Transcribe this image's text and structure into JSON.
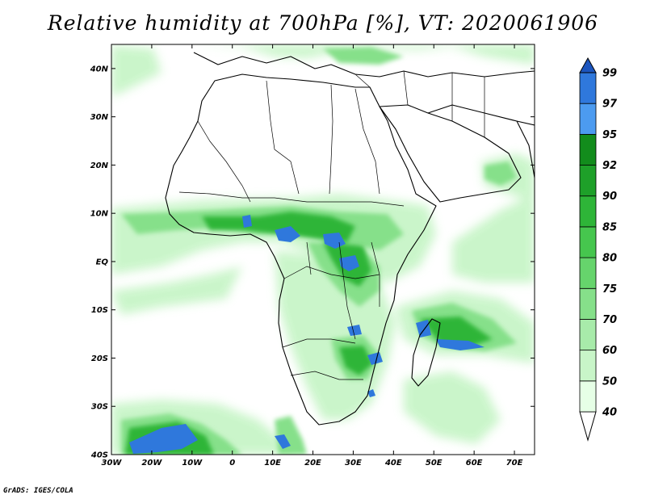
{
  "title": "Relative humidity at 700hPa [%], VT: 2020061906",
  "credit": "GrADS: IGES/COLA",
  "map": {
    "lon_range": [
      -30,
      75
    ],
    "lat_range": [
      -40,
      45
    ],
    "lat_ticks": [
      {
        "value": 40,
        "label": "40N"
      },
      {
        "value": 30,
        "label": "30N"
      },
      {
        "value": 20,
        "label": "20N"
      },
      {
        "value": 10,
        "label": "10N"
      },
      {
        "value": 0,
        "label": "EQ"
      },
      {
        "value": -10,
        "label": "10S"
      },
      {
        "value": -20,
        "label": "20S"
      },
      {
        "value": -30,
        "label": "30S"
      },
      {
        "value": -40,
        "label": "40S"
      }
    ],
    "lon_ticks": [
      {
        "value": -30,
        "label": "30W"
      },
      {
        "value": -20,
        "label": "20W"
      },
      {
        "value": -10,
        "label": "10W"
      },
      {
        "value": 0,
        "label": "0"
      },
      {
        "value": 10,
        "label": "10E"
      },
      {
        "value": 20,
        "label": "20E"
      },
      {
        "value": 30,
        "label": "30E"
      },
      {
        "value": 40,
        "label": "40E"
      },
      {
        "value": 50,
        "label": "50E"
      },
      {
        "value": 60,
        "label": "60E"
      },
      {
        "value": 70,
        "label": "70E"
      }
    ]
  },
  "colorbar": {
    "levels": [
      "40",
      "50",
      "60",
      "70",
      "75",
      "80",
      "85",
      "90",
      "92",
      "95",
      "97",
      "99"
    ],
    "colors": [
      "#e6ffe6",
      "#c8f5c8",
      "#a8ebaa",
      "#86e08a",
      "#66d46c",
      "#46c64e",
      "#2eb538",
      "#1ea029",
      "#128c1c",
      "#4c9bf0",
      "#2f78dc",
      "#1c55be"
    ]
  },
  "palette": {
    "coast": "#000000",
    "humid_blue": "#2f78dc"
  }
}
